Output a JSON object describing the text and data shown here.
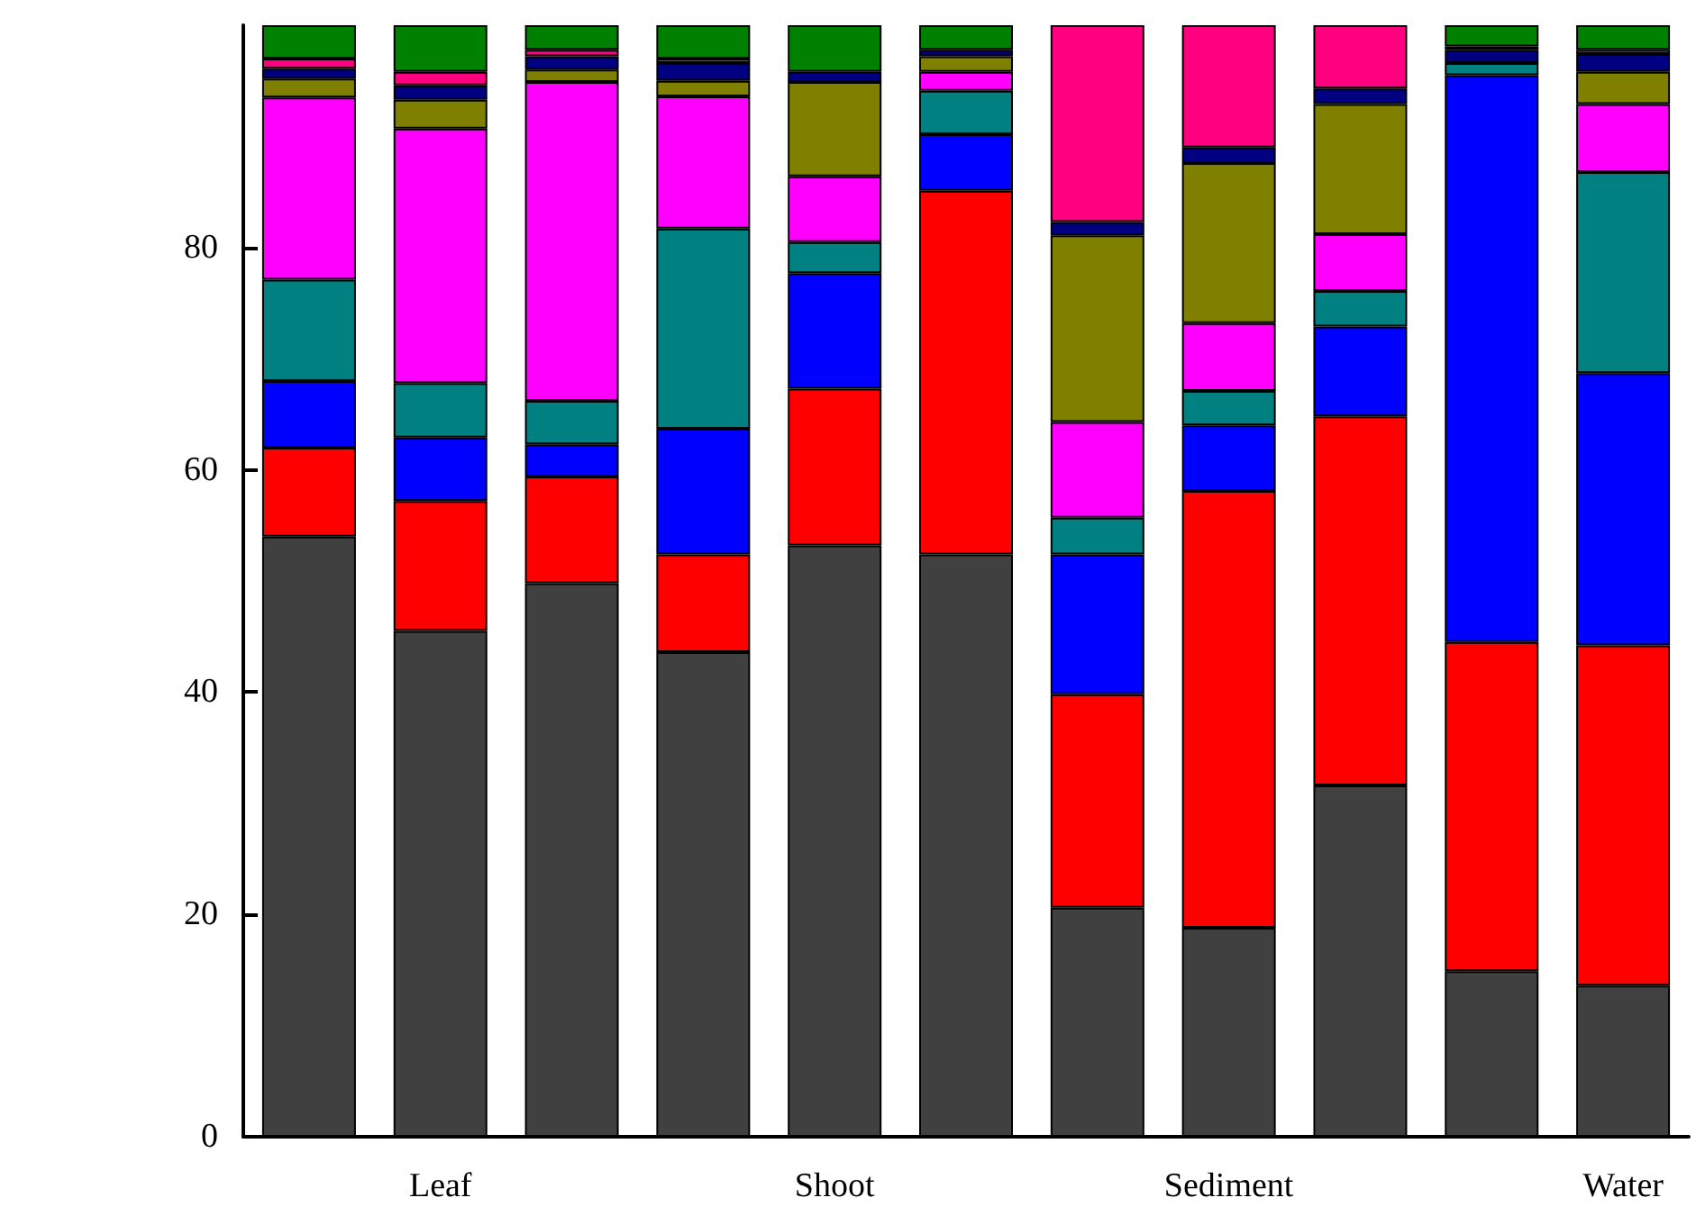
{
  "chart_data": {
    "type": "bar",
    "stacked": true,
    "categories": [
      null,
      "Leaf",
      null,
      null,
      "Shoot",
      null,
      null,
      "Sediment",
      null,
      null,
      "Water"
    ],
    "series": [
      {
        "color": "#404040",
        "values": [
          54,
          45.5,
          49.8,
          43.6,
          53.2,
          52.4,
          20.6,
          18.8,
          31.6,
          14.9,
          13.6
        ]
      },
      {
        "color": "#ff0000",
        "values": [
          8,
          11.7,
          9.6,
          8.8,
          14.1,
          32.7,
          19.2,
          39.3,
          33.2,
          29.6,
          30.6
        ]
      },
      {
        "color": "#0000ff",
        "values": [
          6,
          5.7,
          2.9,
          11.3,
          10.4,
          5.1,
          12.6,
          5.9,
          8.1,
          51.0,
          24.5
        ]
      },
      {
        "color": "#008080",
        "values": [
          9.1,
          4.9,
          3.9,
          18.0,
          2.8,
          3.9,
          3.3,
          3.1,
          3.2,
          1.1,
          18.1
        ]
      },
      {
        "color": "#ff00ff",
        "values": [
          16.4,
          22.9,
          28.7,
          11.9,
          5.9,
          1.7,
          8.6,
          6.1,
          5.1,
          0,
          6.1
        ]
      },
      {
        "color": "#808000",
        "values": [
          1.7,
          2.6,
          1.1,
          1.4,
          8.5,
          1.4,
          16.8,
          14.4,
          11.7,
          0,
          2.9
        ]
      },
      {
        "color": "#000080",
        "values": [
          0.9,
          1.3,
          1.2,
          1.6,
          0.9,
          0.6,
          1.2,
          1.4,
          1.4,
          1.2,
          1.6
        ]
      },
      {
        "color": "#ff0080",
        "values": [
          0.9,
          1.2,
          0.6,
          0.4,
          0,
          0,
          17.7,
          11.0,
          5.7,
          0.3,
          0.4
        ]
      },
      {
        "color": "#008000",
        "values": [
          3.0,
          4.2,
          2.2,
          3.0,
          4.2,
          2.2,
          0,
          0,
          0,
          1.9,
          2.2
        ]
      }
    ],
    "ylim": [
      0,
      100
    ],
    "yticks": [
      0,
      20,
      40,
      60,
      80
    ],
    "grid": false
  }
}
